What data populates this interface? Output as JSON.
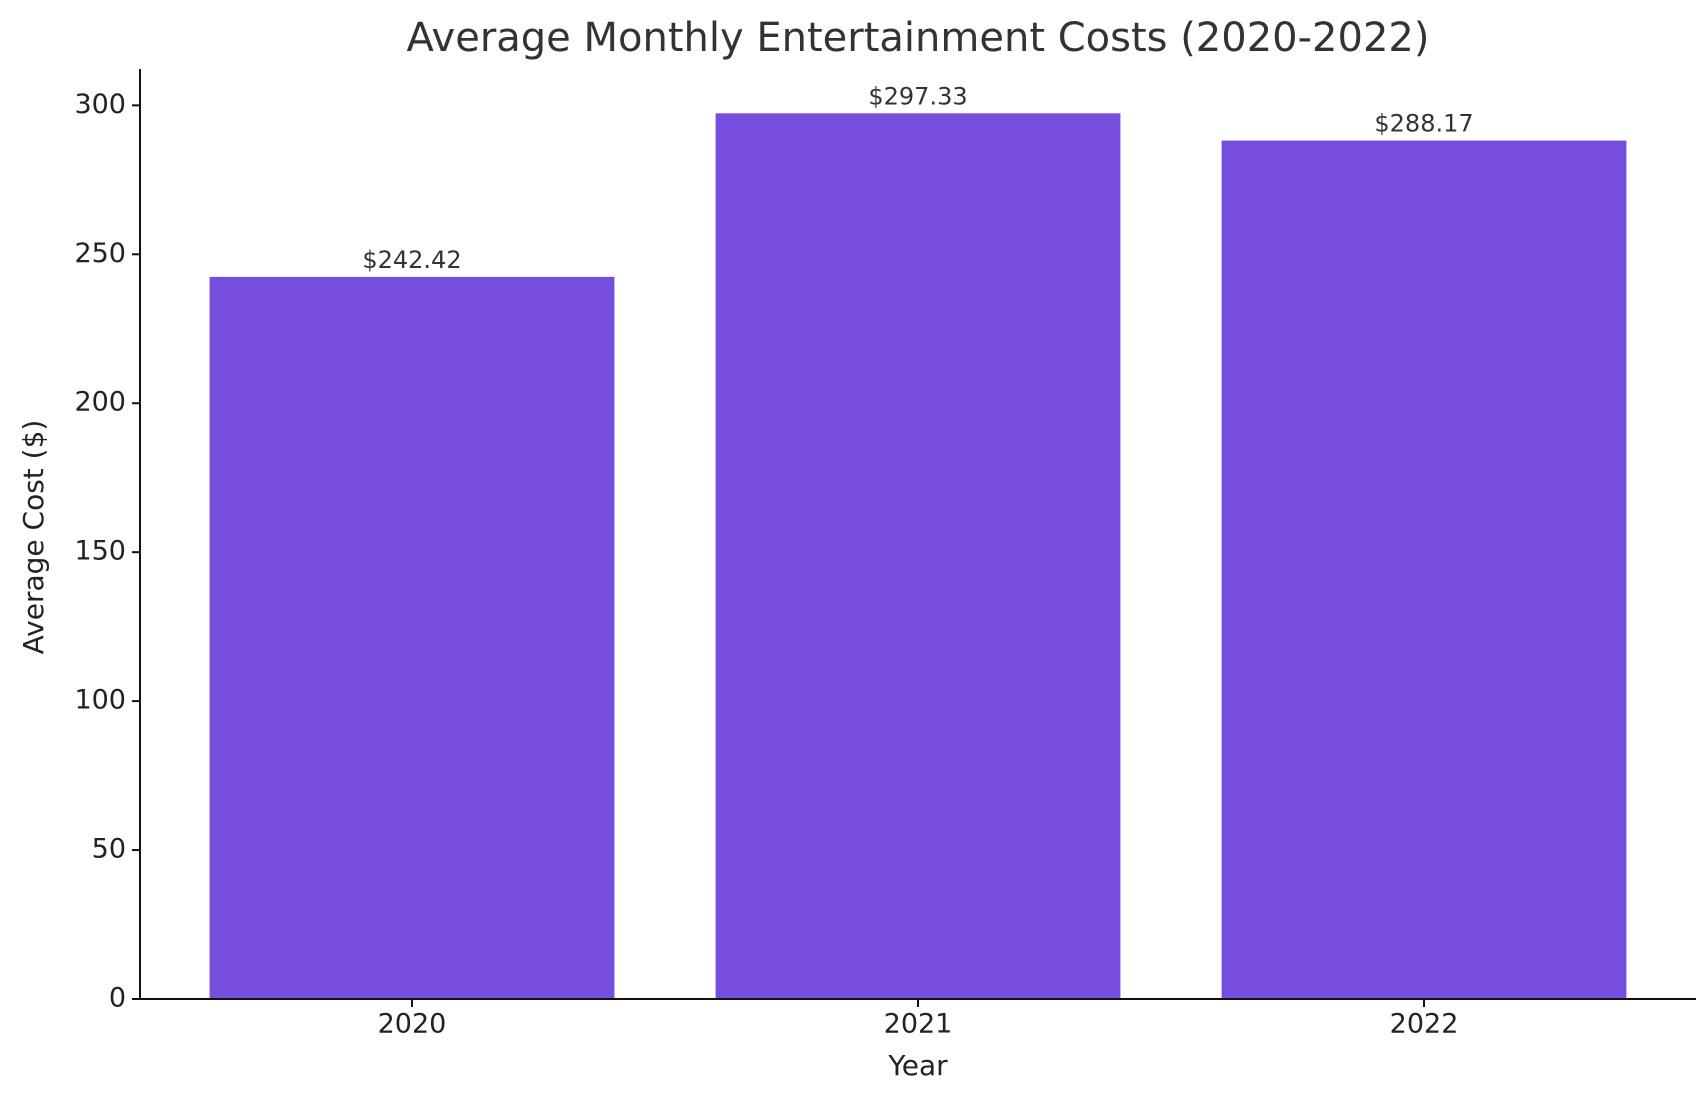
{
  "chart_data": {
    "type": "bar",
    "title": "Average Monthly Entertainment Costs (2020-2022)",
    "x_label": "Year",
    "y_label": "Average Cost ($)",
    "categories": [
      "2020",
      "2021",
      "2022"
    ],
    "values": [
      242.42,
      297.33,
      288.17
    ],
    "value_labels": [
      "$242.42",
      "$297.33",
      "$288.17"
    ],
    "color": "#774ddd",
    "ylim": [
      0,
      312.2
    ],
    "yticks": [
      0,
      50,
      100,
      150,
      200,
      250,
      300
    ],
    "grid": false
  }
}
